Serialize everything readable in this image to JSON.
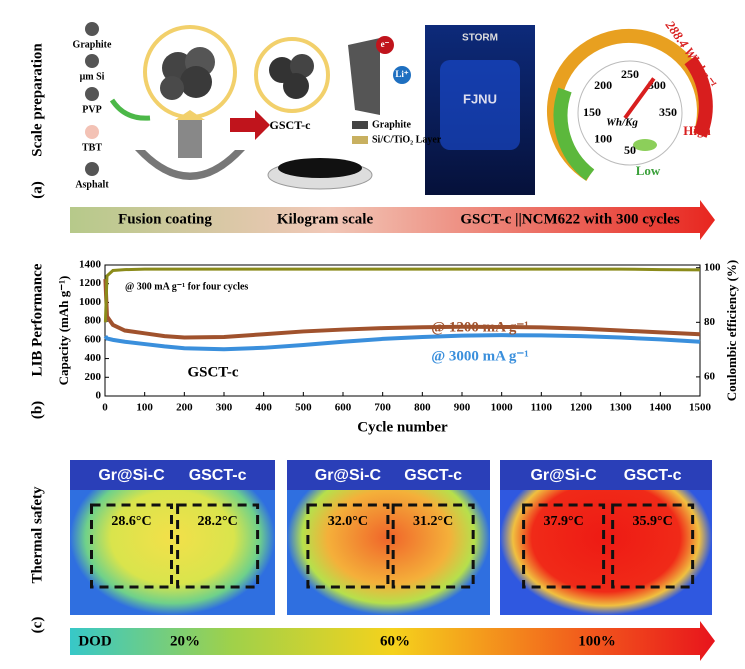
{
  "panel_a": {
    "label": "(a)",
    "side_label": "Scale preparation",
    "materials": [
      "Graphite",
      "μm Si",
      "PVP",
      "TBT",
      "Asphalt"
    ],
    "product": "GSCT-c",
    "legend": [
      "Graphite",
      "Si/C/TiO₂ Layer"
    ],
    "electron": "e⁻",
    "lithium": "Li⁺",
    "car_texts": [
      "STORM",
      "FJNU"
    ],
    "gauge": {
      "value_label": "288.4 Wh kg⁻¹",
      "ticks": [
        50,
        100,
        150,
        200,
        250,
        300,
        350
      ],
      "unit": "Wh/Kg",
      "high": "High",
      "low": "Low"
    },
    "stages": [
      "Fusion coating",
      "Kilogram scale",
      "GSCT-c ||NCM622 with 300 cycles"
    ]
  },
  "chart_data": {
    "type": "line",
    "label": "(b)",
    "side_label": "LIB Performance",
    "x_label": "Cycle number",
    "y_label": "Capacity (mAh g⁻¹)",
    "y2_label": "Coulombic efficiency (%)",
    "annotations": [
      "@ 300 mA g⁻¹ for four cycles",
      "GSCT-c"
    ],
    "x": [
      1,
      5,
      20,
      50,
      100,
      150,
      200,
      300,
      400,
      500,
      600,
      700,
      800,
      900,
      1000,
      1100,
      1200,
      1300,
      1400,
      1500
    ],
    "series": [
      {
        "name": "@ 1200 mA g⁻¹",
        "color": "#a0522d",
        "values": [
          1250,
          850,
          760,
          700,
          670,
          640,
          625,
          630,
          660,
          690,
          710,
          725,
          735,
          740,
          738,
          733,
          720,
          700,
          680,
          660
        ]
      },
      {
        "name": "@ 3000 mA g⁻¹",
        "color": "#3a8fdc",
        "values": [
          640,
          615,
          600,
          580,
          555,
          530,
          510,
          500,
          515,
          545,
          580,
          610,
          630,
          645,
          650,
          648,
          640,
          625,
          605,
          580
        ]
      },
      {
        "name": "Coulombic efficiency",
        "color": "#8b8b1a",
        "axis": "y2",
        "values": [
          80,
          97,
          99,
          99.3,
          99.5,
          99.5,
          99.5,
          99.5,
          99.5,
          99.5,
          99.5,
          99.5,
          99.5,
          99.5,
          99.5,
          99.5,
          99.5,
          99.5,
          99.3,
          99.2
        ]
      }
    ],
    "xlim": [
      0,
      1500
    ],
    "xticks": [
      0,
      100,
      200,
      300,
      400,
      500,
      600,
      700,
      800,
      900,
      1000,
      1100,
      1200,
      1300,
      1400,
      1500
    ],
    "ylim": [
      0,
      1400
    ],
    "yticks": [
      0,
      200,
      400,
      600,
      800,
      1000,
      1200,
      1400
    ],
    "y2lim": [
      53,
      101
    ],
    "y2ticks": [
      60,
      80,
      100
    ]
  },
  "panel_c": {
    "label": "(c)",
    "side_label": "Thermal safety",
    "images": [
      {
        "headers": [
          "Gr@Si-C",
          "GSCT-c"
        ],
        "temps": [
          "28.6°C",
          "28.2°C"
        ]
      },
      {
        "headers": [
          "Gr@Si-C",
          "GSCT-c"
        ],
        "temps": [
          "32.0°C",
          "31.2°C"
        ]
      },
      {
        "headers": [
          "Gr@Si-C",
          "GSCT-c"
        ],
        "temps": [
          "37.9°C",
          "35.9°C"
        ]
      }
    ],
    "dod": [
      "DOD",
      "20%",
      "60%",
      "100%"
    ]
  }
}
